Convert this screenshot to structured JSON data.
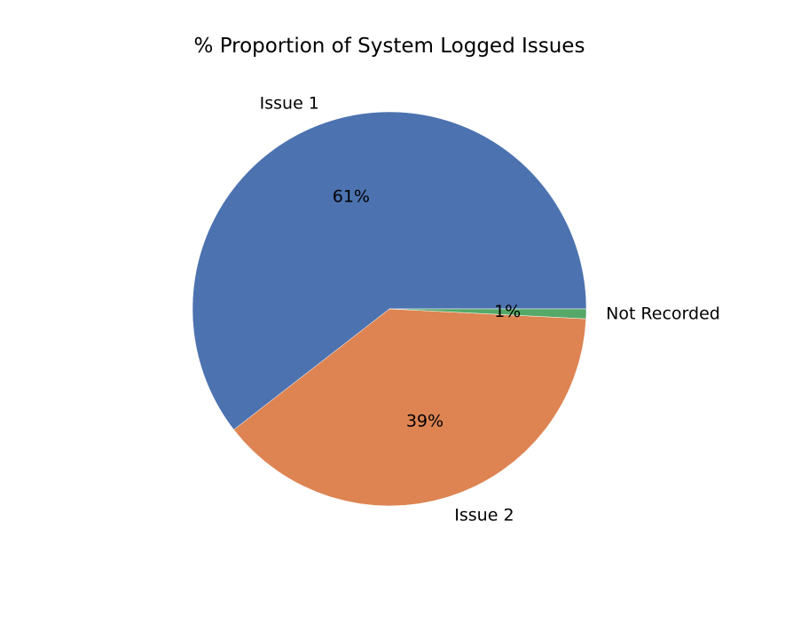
{
  "chart_data": {
    "type": "pie",
    "title": "% Proportion of System Logged Issues",
    "categories": [
      "Issue 1",
      "Issue 2",
      "Not Recorded"
    ],
    "values": [
      60.5,
      38.7,
      0.8
    ],
    "percent_labels": [
      "61%",
      "39%",
      "1%"
    ],
    "colors": [
      "#4c72b0",
      "#dd8452",
      "#55a868"
    ],
    "start_angle": 0,
    "direction": "counterclockwise",
    "legend": "none"
  }
}
